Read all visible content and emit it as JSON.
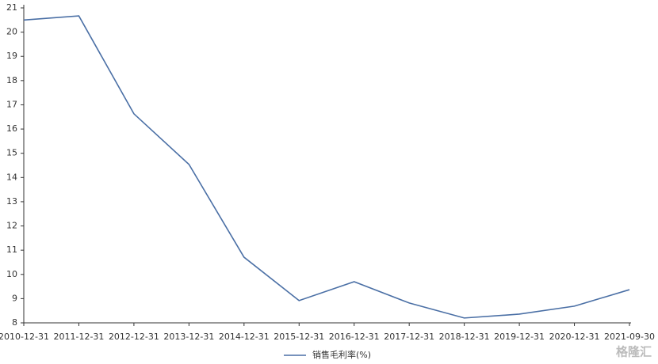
{
  "chart_data": {
    "type": "line",
    "categories": [
      "2010-12-31",
      "2011-12-31",
      "2012-12-31",
      "2013-12-31",
      "2014-12-31",
      "2015-12-31",
      "2016-12-31",
      "2017-12-31",
      "2018-12-31",
      "2019-12-31",
      "2020-12-31",
      "2021-09-30"
    ],
    "series": [
      {
        "name": "销售毛利率(%)",
        "color": "#4a6fa5",
        "values": [
          20.5,
          20.67,
          16.63,
          14.54,
          10.71,
          8.92,
          9.7,
          8.82,
          8.2,
          8.36,
          8.69,
          9.37
        ]
      }
    ],
    "ylim": [
      8,
      21
    ],
    "yticks": [
      8,
      9,
      10,
      11,
      12,
      13,
      14,
      15,
      16,
      17,
      18,
      19,
      20,
      21
    ],
    "grid": false,
    "legend": "bottom",
    "watermark": "格隆汇"
  }
}
